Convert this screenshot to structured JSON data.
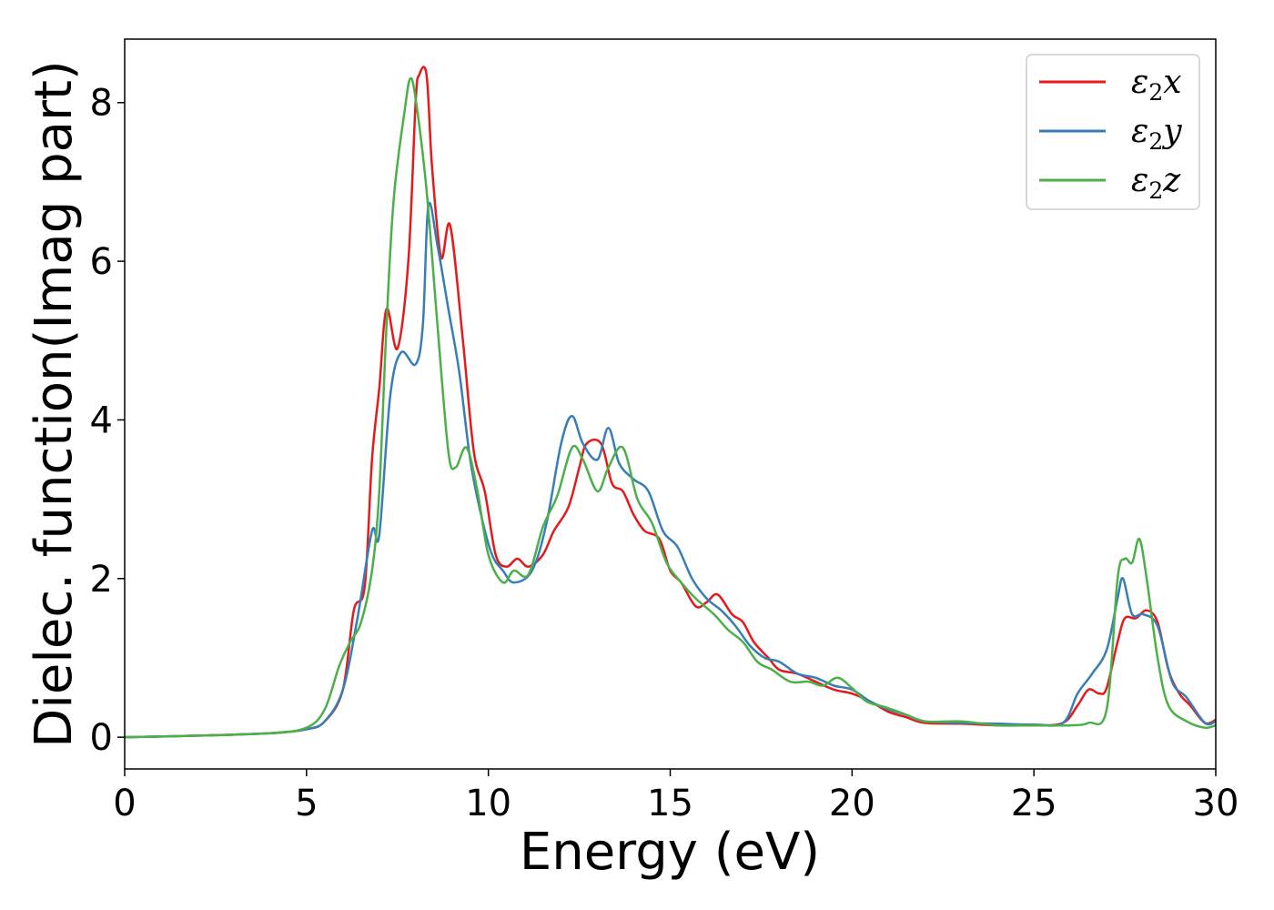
{
  "chart_data": {
    "type": "line",
    "title": "",
    "xlabel": "Energy (eV)",
    "ylabel": "Dielec. function(Imag part)",
    "xlim": [
      0,
      30
    ],
    "ylim": [
      -0.4,
      8.8
    ],
    "xticks": [
      0,
      5,
      10,
      15,
      20,
      25,
      30
    ],
    "yticks": [
      0,
      2,
      4,
      6,
      8
    ],
    "grid": false,
    "legend_position": "top-right",
    "series": [
      {
        "name": "ε2x",
        "legend": {
          "base": "ε",
          "sub": "2",
          "suffix": "x"
        },
        "color": "#e41a1c",
        "points": [
          [
            0,
            0
          ],
          [
            2,
            0.02
          ],
          [
            4,
            0.05
          ],
          [
            5,
            0.1
          ],
          [
            5.5,
            0.2
          ],
          [
            6,
            0.6
          ],
          [
            6.3,
            1.6
          ],
          [
            6.6,
            1.9
          ],
          [
            6.8,
            3.5
          ],
          [
            7,
            4.4
          ],
          [
            7.2,
            5.4
          ],
          [
            7.5,
            4.9
          ],
          [
            7.8,
            6.0
          ],
          [
            8,
            8.0
          ],
          [
            8.1,
            8.35
          ],
          [
            8.3,
            8.35
          ],
          [
            8.45,
            7.2
          ],
          [
            8.7,
            6.05
          ],
          [
            8.95,
            6.45
          ],
          [
            9.3,
            5.0
          ],
          [
            9.6,
            3.6
          ],
          [
            9.9,
            3.1
          ],
          [
            10.2,
            2.3
          ],
          [
            10.5,
            2.15
          ],
          [
            10.8,
            2.25
          ],
          [
            11.1,
            2.15
          ],
          [
            11.5,
            2.3
          ],
          [
            11.8,
            2.6
          ],
          [
            12.2,
            2.9
          ],
          [
            12.5,
            3.4
          ],
          [
            12.7,
            3.7
          ],
          [
            13.1,
            3.7
          ],
          [
            13.4,
            3.2
          ],
          [
            13.7,
            3.1
          ],
          [
            14,
            2.8
          ],
          [
            14.3,
            2.6
          ],
          [
            14.7,
            2.5
          ],
          [
            15,
            2.1
          ],
          [
            15.3,
            1.95
          ],
          [
            15.7,
            1.65
          ],
          [
            16,
            1.7
          ],
          [
            16.3,
            1.8
          ],
          [
            16.7,
            1.55
          ],
          [
            17,
            1.45
          ],
          [
            17.3,
            1.2
          ],
          [
            17.7,
            1.0
          ],
          [
            18,
            0.85
          ],
          [
            18.5,
            0.8
          ],
          [
            19,
            0.7
          ],
          [
            19.5,
            0.6
          ],
          [
            20,
            0.55
          ],
          [
            20.5,
            0.45
          ],
          [
            21,
            0.32
          ],
          [
            21.5,
            0.25
          ],
          [
            22,
            0.18
          ],
          [
            23,
            0.17
          ],
          [
            24,
            0.15
          ],
          [
            25,
            0.15
          ],
          [
            25.8,
            0.18
          ],
          [
            26.2,
            0.4
          ],
          [
            26.5,
            0.6
          ],
          [
            26.8,
            0.55
          ],
          [
            27,
            0.62
          ],
          [
            27.3,
            1.2
          ],
          [
            27.5,
            1.5
          ],
          [
            27.8,
            1.5
          ],
          [
            28.1,
            1.6
          ],
          [
            28.4,
            1.45
          ],
          [
            28.7,
            0.85
          ],
          [
            29,
            0.55
          ],
          [
            29.3,
            0.4
          ],
          [
            29.7,
            0.18
          ],
          [
            30,
            0.22
          ]
        ]
      },
      {
        "name": "ε2y",
        "legend": {
          "base": "ε",
          "sub": "2",
          "suffix": "y"
        },
        "color": "#377eb8",
        "points": [
          [
            0,
            0
          ],
          [
            2,
            0.02
          ],
          [
            4,
            0.05
          ],
          [
            5,
            0.1
          ],
          [
            5.5,
            0.2
          ],
          [
            6,
            0.6
          ],
          [
            6.4,
            1.5
          ],
          [
            6.8,
            2.6
          ],
          [
            7,
            2.55
          ],
          [
            7.3,
            4.3
          ],
          [
            7.6,
            4.85
          ],
          [
            8,
            4.7
          ],
          [
            8.2,
            5.2
          ],
          [
            8.35,
            6.7
          ],
          [
            8.6,
            6.2
          ],
          [
            8.9,
            5.4
          ],
          [
            9.2,
            4.6
          ],
          [
            9.5,
            3.5
          ],
          [
            9.8,
            2.8
          ],
          [
            10.1,
            2.3
          ],
          [
            10.4,
            2.1
          ],
          [
            10.7,
            1.95
          ],
          [
            11.2,
            2.1
          ],
          [
            11.6,
            2.7
          ],
          [
            12,
            3.7
          ],
          [
            12.3,
            4.05
          ],
          [
            12.6,
            3.7
          ],
          [
            13,
            3.5
          ],
          [
            13.3,
            3.9
          ],
          [
            13.6,
            3.45
          ],
          [
            14,
            3.25
          ],
          [
            14.4,
            3.1
          ],
          [
            14.8,
            2.6
          ],
          [
            15.2,
            2.4
          ],
          [
            15.6,
            2.0
          ],
          [
            16,
            1.75
          ],
          [
            16.4,
            1.6
          ],
          [
            16.8,
            1.4
          ],
          [
            17.2,
            1.15
          ],
          [
            17.6,
            1.0
          ],
          [
            18,
            0.95
          ],
          [
            18.5,
            0.8
          ],
          [
            19,
            0.75
          ],
          [
            19.5,
            0.65
          ],
          [
            20,
            0.6
          ],
          [
            20.5,
            0.45
          ],
          [
            21,
            0.35
          ],
          [
            21.5,
            0.28
          ],
          [
            22,
            0.2
          ],
          [
            23,
            0.18
          ],
          [
            24,
            0.17
          ],
          [
            25,
            0.16
          ],
          [
            25.8,
            0.18
          ],
          [
            26.2,
            0.55
          ],
          [
            26.6,
            0.8
          ],
          [
            27,
            1.1
          ],
          [
            27.3,
            1.75
          ],
          [
            27.45,
            2.0
          ],
          [
            27.7,
            1.55
          ],
          [
            28,
            1.55
          ],
          [
            28.4,
            1.4
          ],
          [
            28.8,
            0.7
          ],
          [
            29.2,
            0.5
          ],
          [
            29.7,
            0.18
          ],
          [
            30,
            0.2
          ]
        ]
      },
      {
        "name": "ε2z",
        "legend": {
          "base": "ε",
          "sub": "2",
          "suffix": "z"
        },
        "color": "#4daf4a",
        "points": [
          [
            0,
            0
          ],
          [
            2,
            0.02
          ],
          [
            4,
            0.05
          ],
          [
            5,
            0.12
          ],
          [
            5.5,
            0.35
          ],
          [
            5.9,
            0.9
          ],
          [
            6.2,
            1.2
          ],
          [
            6.5,
            1.45
          ],
          [
            6.8,
            2.1
          ],
          [
            7,
            3.1
          ],
          [
            7.2,
            5.2
          ],
          [
            7.4,
            6.8
          ],
          [
            7.7,
            7.9
          ],
          [
            7.85,
            8.3
          ],
          [
            8,
            8.05
          ],
          [
            8.3,
            6.9
          ],
          [
            8.6,
            5.2
          ],
          [
            8.9,
            3.6
          ],
          [
            9.1,
            3.4
          ],
          [
            9.4,
            3.65
          ],
          [
            9.7,
            3.1
          ],
          [
            10,
            2.3
          ],
          [
            10.4,
            1.95
          ],
          [
            10.7,
            2.1
          ],
          [
            11.1,
            2.05
          ],
          [
            11.5,
            2.65
          ],
          [
            11.9,
            3.05
          ],
          [
            12.3,
            3.65
          ],
          [
            12.6,
            3.5
          ],
          [
            13,
            3.1
          ],
          [
            13.3,
            3.4
          ],
          [
            13.7,
            3.65
          ],
          [
            14.1,
            3.0
          ],
          [
            14.5,
            2.7
          ],
          [
            14.9,
            2.2
          ],
          [
            15.3,
            1.95
          ],
          [
            15.7,
            1.75
          ],
          [
            16.2,
            1.55
          ],
          [
            16.6,
            1.35
          ],
          [
            17,
            1.2
          ],
          [
            17.4,
            0.95
          ],
          [
            17.8,
            0.85
          ],
          [
            18.3,
            0.7
          ],
          [
            18.8,
            0.7
          ],
          [
            19.2,
            0.65
          ],
          [
            19.6,
            0.75
          ],
          [
            20,
            0.62
          ],
          [
            20.4,
            0.45
          ],
          [
            20.9,
            0.38
          ],
          [
            21.4,
            0.3
          ],
          [
            22,
            0.2
          ],
          [
            23,
            0.2
          ],
          [
            24,
            0.15
          ],
          [
            25,
            0.15
          ],
          [
            26,
            0.15
          ],
          [
            26.5,
            0.18
          ],
          [
            27,
            0.35
          ],
          [
            27.3,
            2.0
          ],
          [
            27.5,
            2.25
          ],
          [
            27.7,
            2.2
          ],
          [
            27.9,
            2.5
          ],
          [
            28.1,
            2.0
          ],
          [
            28.4,
            1.0
          ],
          [
            28.7,
            0.4
          ],
          [
            29.2,
            0.2
          ],
          [
            29.7,
            0.12
          ],
          [
            30,
            0.15
          ]
        ]
      }
    ]
  }
}
